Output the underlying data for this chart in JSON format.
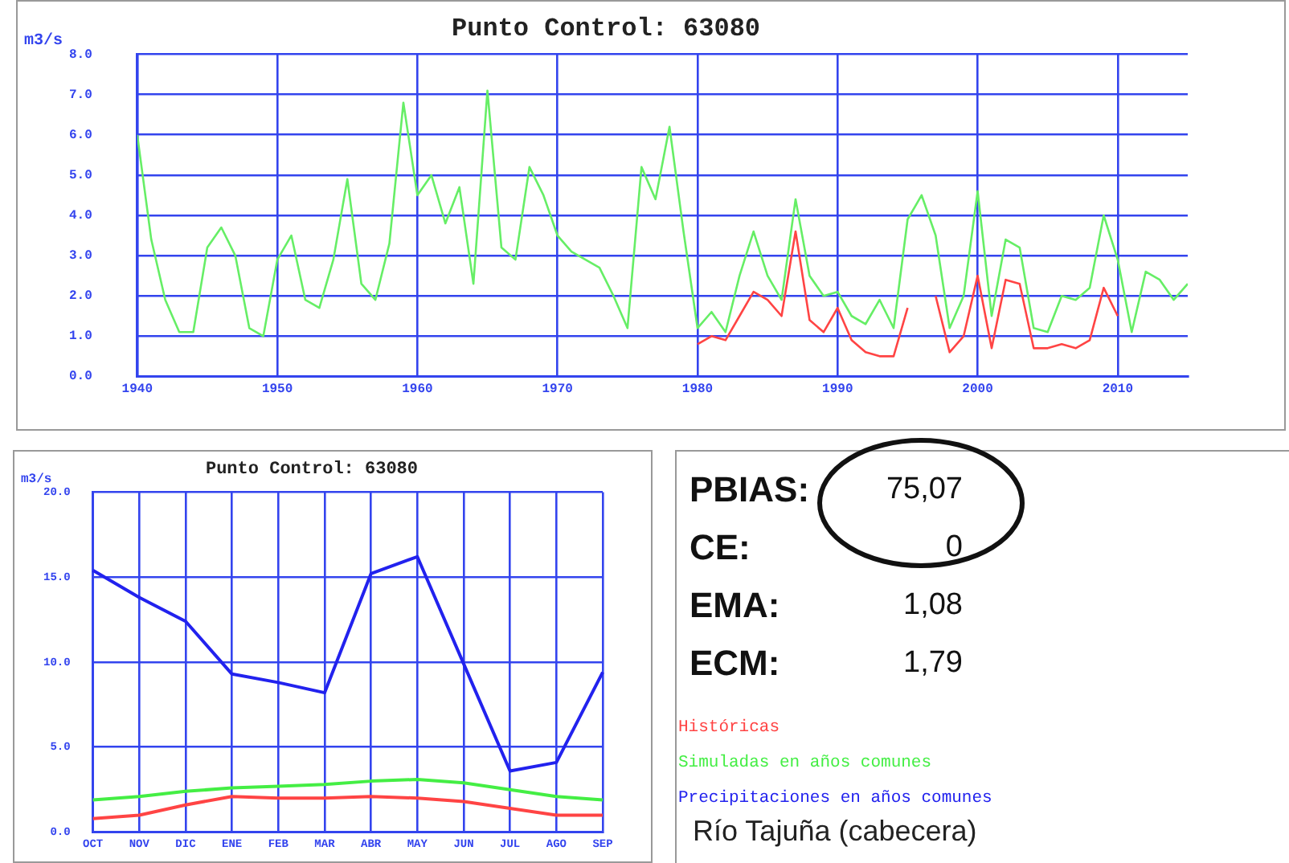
{
  "chart_data": [
    {
      "type": "line",
      "title": "Punto Control: 63080",
      "ylabel": "m3/s",
      "xlim": [
        1940,
        2015
      ],
      "xticks": [
        1940,
        1950,
        1960,
        1970,
        1980,
        1990,
        2000,
        2010
      ],
      "ylim": [
        0,
        8
      ],
      "yticks": [
        {
          "value": 0,
          "label": "0.0"
        },
        {
          "value": 1,
          "label": "1.0"
        },
        {
          "value": 2,
          "label": "2.0"
        },
        {
          "value": 3,
          "label": "3.0"
        },
        {
          "value": 4,
          "label": "4.0"
        },
        {
          "value": 5,
          "label": "5.0"
        },
        {
          "value": 6,
          "label": "6.0"
        },
        {
          "value": 7,
          "label": "7.0"
        },
        {
          "value": 8,
          "label": "8.0"
        }
      ],
      "grid": true,
      "series": [
        {
          "color": "#66ee66",
          "x": [
            1940,
            1941,
            1942,
            1943,
            1944,
            1945,
            1946,
            1947,
            1948,
            1949,
            1950,
            1951,
            1952,
            1953,
            1954,
            1955,
            1956,
            1957,
            1958,
            1959,
            1960,
            1961,
            1962,
            1963,
            1964,
            1965,
            1966,
            1967,
            1968,
            1969,
            1970,
            1971,
            1972,
            1973,
            1974,
            1975,
            1976,
            1977,
            1978,
            1979,
            1980,
            1981,
            1982,
            1983,
            1984,
            1985,
            1986,
            1987,
            1988,
            1989,
            1990,
            1991,
            1992,
            1993,
            1994,
            1995,
            1996,
            1997,
            1998,
            1999,
            2000,
            2001,
            2002,
            2003,
            2004,
            2005,
            2006,
            2007,
            2008,
            2009,
            2010,
            2011,
            2012,
            2013,
            2014,
            2015
          ],
          "values": [
            6.0,
            3.4,
            1.9,
            1.1,
            1.1,
            3.2,
            3.7,
            3.0,
            1.2,
            1.0,
            2.9,
            3.5,
            1.9,
            1.7,
            2.9,
            4.9,
            2.3,
            1.9,
            3.3,
            6.8,
            4.5,
            5.0,
            3.8,
            4.7,
            2.3,
            7.1,
            3.2,
            2.9,
            5.2,
            4.5,
            3.5,
            3.1,
            2.9,
            2.7,
            2.0,
            1.2,
            5.2,
            4.4,
            6.2,
            3.6,
            1.2,
            1.6,
            1.1,
            2.5,
            3.6,
            2.5,
            1.9,
            4.4,
            2.5,
            2.0,
            2.1,
            1.5,
            1.3,
            1.9,
            1.2,
            3.9,
            4.5,
            3.5,
            1.2,
            2.0,
            4.6,
            1.5,
            3.4,
            3.2,
            1.2,
            1.1,
            2.0,
            1.9,
            2.2,
            4.0,
            2.9,
            1.1,
            2.6,
            2.4,
            1.9,
            2.3
          ]
        },
        {
          "color": "#ff4444",
          "x": [
            1980,
            1981,
            1982,
            1983,
            1984,
            1985,
            1986,
            1987,
            1988,
            1989,
            1990,
            1991,
            1992,
            1993,
            1994,
            1995,
            1996,
            1997,
            1998,
            1999,
            2000,
            2001,
            2002,
            2003,
            2004,
            2005,
            2006,
            2007,
            2008,
            2009,
            2010
          ],
          "values": [
            0.8,
            1.0,
            0.9,
            1.5,
            2.1,
            1.9,
            1.5,
            3.6,
            1.4,
            1.1,
            1.7,
            0.9,
            0.6,
            0.5,
            0.5,
            1.7,
            null,
            2.0,
            0.6,
            1.0,
            2.5,
            0.7,
            2.4,
            2.3,
            0.7,
            0.7,
            0.8,
            0.7,
            0.9,
            2.2,
            1.5
          ]
        }
      ]
    },
    {
      "type": "line",
      "title": "Punto Control: 63080",
      "ylabel": "m3/s",
      "categories": [
        "OCT",
        "NOV",
        "DIC",
        "ENE",
        "FEB",
        "MAR",
        "ABR",
        "MAY",
        "JUN",
        "JUL",
        "AGO",
        "SEP"
      ],
      "ylim": [
        0,
        20
      ],
      "yticks": [
        {
          "value": 0,
          "label": "0.0"
        },
        {
          "value": 5,
          "label": "5.0"
        },
        {
          "value": 10,
          "label": "10.0"
        },
        {
          "value": 15,
          "label": "15.0"
        },
        {
          "value": 20,
          "label": "20.0"
        }
      ],
      "grid": true,
      "legend": "right",
      "series": [
        {
          "name": "Históricas",
          "color": "#ff4444",
          "values": [
            0.8,
            1.0,
            1.6,
            2.1,
            2.0,
            2.0,
            2.1,
            2.0,
            1.8,
            1.4,
            1.0,
            1.0
          ]
        },
        {
          "name": "Simuladas en años comunes",
          "color": "#44ee44",
          "values": [
            1.9,
            2.1,
            2.4,
            2.6,
            2.7,
            2.8,
            3.0,
            3.1,
            2.9,
            2.5,
            2.1,
            1.9
          ]
        },
        {
          "name": "Precipitaciones en años comunes",
          "color": "#2222ee",
          "values": [
            15.4,
            13.8,
            12.4,
            9.3,
            8.8,
            8.2,
            15.2,
            16.2,
            9.9,
            3.6,
            4.1,
            9.4
          ]
        }
      ]
    },
    {
      "type": "other",
      "annotations": [
        "PBIAS:",
        "75,07",
        "CE:",
        "0",
        "EMA:",
        "1,08",
        "ECM:",
        "1,79"
      ],
      "subtitle": "Río Tajuña (cabecera)"
    }
  ]
}
